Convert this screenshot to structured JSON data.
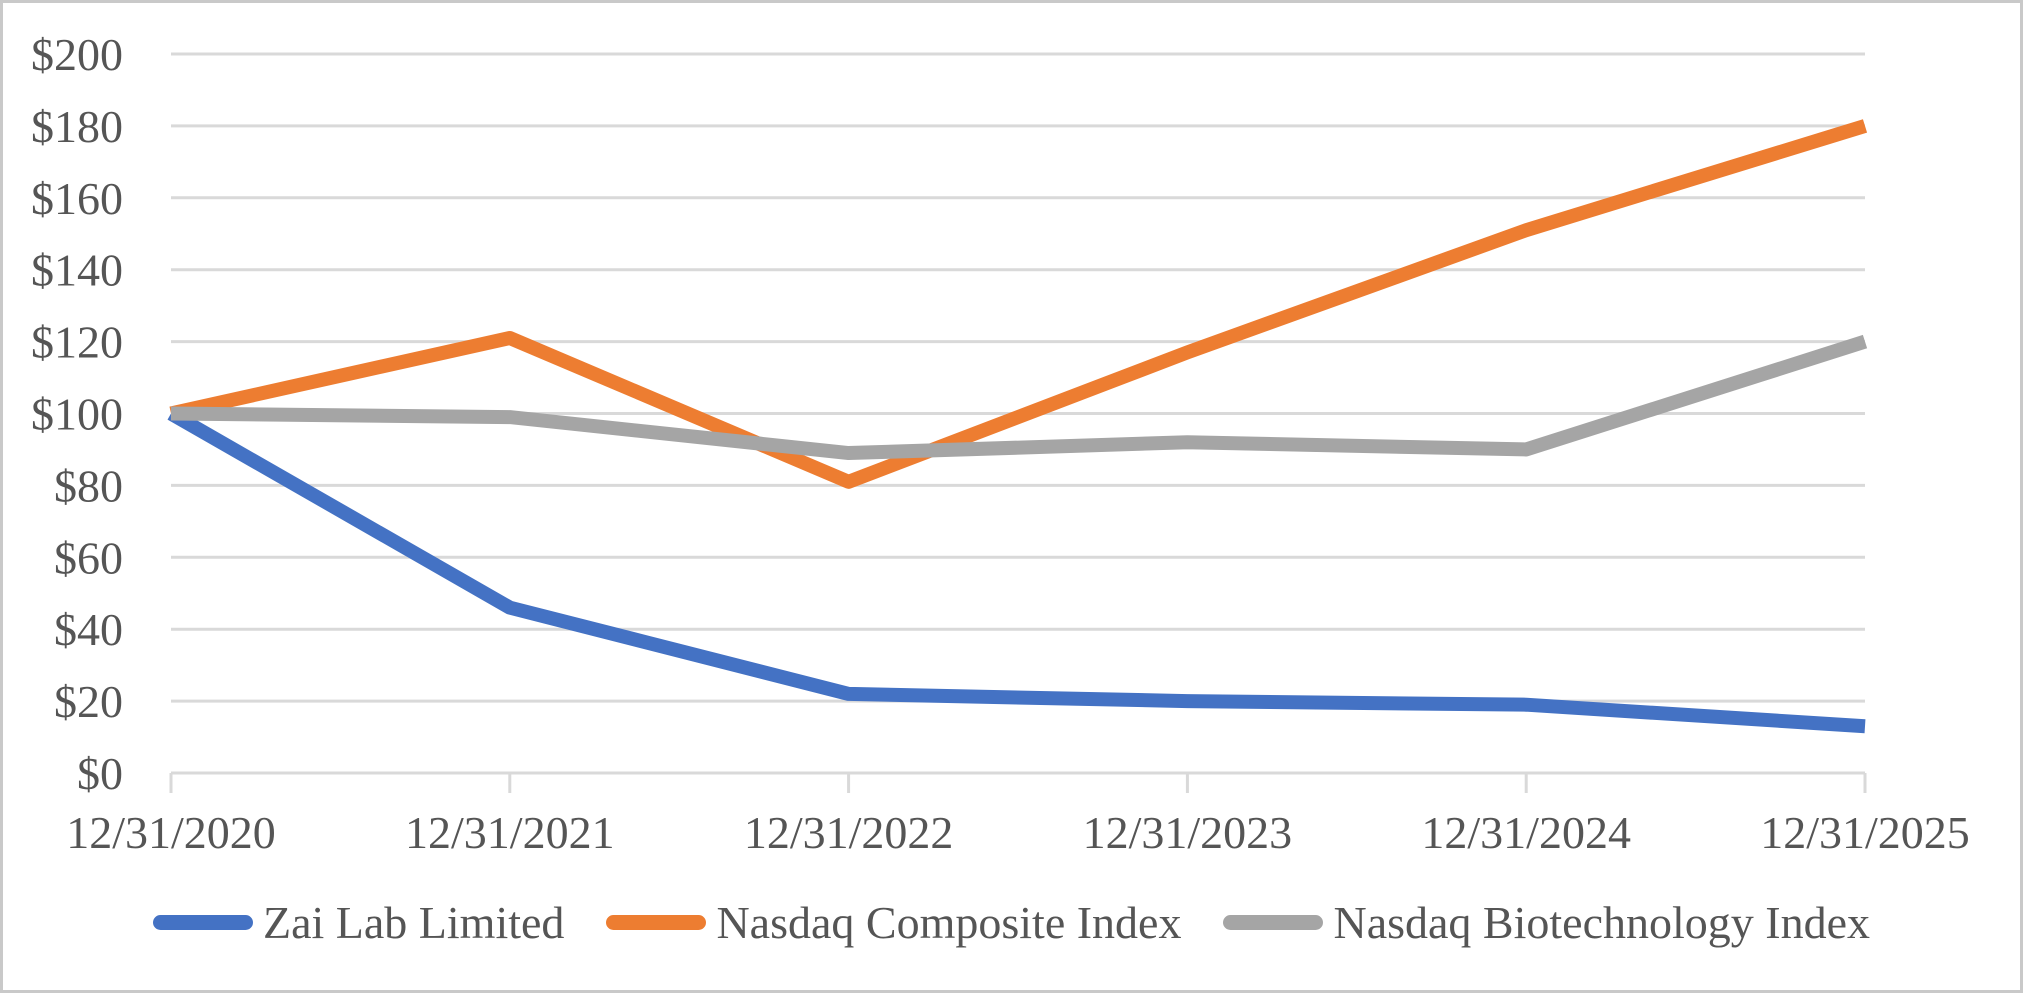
{
  "chart_data": {
    "type": "line",
    "categories": [
      "12/31/2020",
      "12/31/2021",
      "12/31/2022",
      "12/31/2023",
      "12/31/2024",
      "12/31/2025"
    ],
    "series": [
      {
        "name": "Zai Lab Limited",
        "color": "#4472C4",
        "values": [
          100,
          46,
          22,
          20,
          19,
          13
        ]
      },
      {
        "name": "Nasdaq Composite Index",
        "color": "#ED7D31",
        "values": [
          100,
          121,
          81,
          117,
          151,
          180
        ]
      },
      {
        "name": "Nasdaq Biotechnology Index",
        "color": "#A5A5A5",
        "values": [
          100,
          99,
          89,
          92,
          90,
          120
        ]
      }
    ],
    "title": "",
    "xlabel": "",
    "ylabel": "",
    "ylim": [
      0,
      200
    ],
    "y_tick_step": 20,
    "y_tick_labels": [
      "$0",
      "$20",
      "$40",
      "$60",
      "$80",
      "$100",
      "$120",
      "$140",
      "$160",
      "$180",
      "$200"
    ],
    "grid": "horizontal",
    "gridline_color": "#D9D9D9",
    "axis_text_color": "#555555",
    "legend_position": "bottom"
  }
}
